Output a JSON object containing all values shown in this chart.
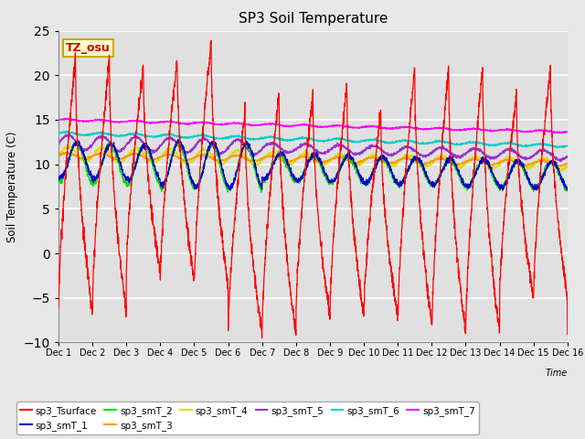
{
  "title": "SP3 Soil Temperature",
  "ylabel": "Soil Temperature (C)",
  "xlabel": "Time",
  "xlim": [
    0,
    15
  ],
  "ylim": [
    -10,
    25
  ],
  "yticks": [
    -10,
    -5,
    0,
    5,
    10,
    15,
    20,
    25
  ],
  "xtick_labels": [
    "Dec 1",
    "Dec 2",
    "Dec 3",
    "Dec 4",
    "Dec 5",
    "Dec 6",
    "Dec 7",
    "Dec 8",
    "Dec 9",
    "Dec 10",
    "Dec 11",
    "Dec 12",
    "Dec 13",
    "Dec 14",
    "Dec 15",
    "Dec 16"
  ],
  "series_colors": {
    "sp3_Tsurface": "#ff0000",
    "sp3_smT_1": "#0000cc",
    "sp3_smT_2": "#00dd00",
    "sp3_smT_3": "#ff9900",
    "sp3_smT_4": "#dddd00",
    "sp3_smT_5": "#9933cc",
    "sp3_smT_6": "#00cccc",
    "sp3_smT_7": "#ff00ff"
  },
  "annotation_text": "TZ_osu",
  "annotation_color": "#cc0000",
  "annotation_bg": "#ffffcc",
  "annotation_border": "#ccaa00",
  "fig_facecolor": "#e8e8e8",
  "ax_facecolor": "#e0e0e0",
  "grid_color": "#ffffff",
  "n_points": 2880,
  "figsize": [
    6.4,
    4.8
  ],
  "dpi": 100
}
